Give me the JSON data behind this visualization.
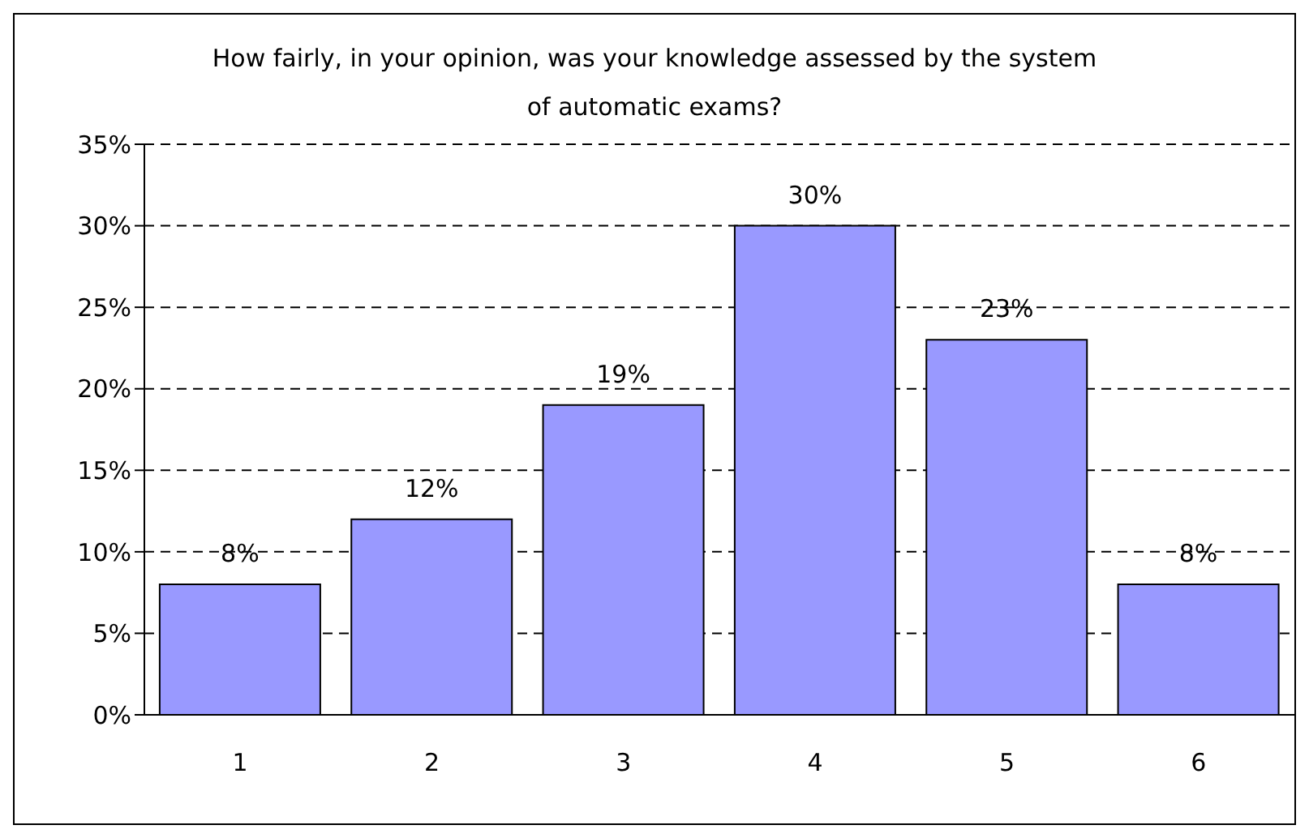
{
  "chart_data": {
    "type": "bar",
    "title": "How fairly, in your opinion, was your knowledge assessed by the system of automatic exams?",
    "categories": [
      "1",
      "2",
      "3",
      "4",
      "5",
      "6"
    ],
    "values": [
      8,
      12,
      19,
      30,
      23,
      8
    ],
    "value_labels": [
      "8%",
      "12%",
      "19%",
      "30%",
      "23%",
      "8%"
    ],
    "color": "#9999ff",
    "ylim": [
      0,
      35
    ],
    "yticks": [
      {
        "value": 0,
        "label": "0%"
      },
      {
        "value": 5,
        "label": "5%"
      },
      {
        "value": 10,
        "label": "10%"
      },
      {
        "value": 15,
        "label": "15%"
      },
      {
        "value": 20,
        "label": "20%"
      },
      {
        "value": 25,
        "label": "25%"
      },
      {
        "value": 30,
        "label": "30%"
      },
      {
        "value": 35,
        "label": "35%"
      }
    ],
    "grid": "y",
    "line_style": "dashed"
  }
}
